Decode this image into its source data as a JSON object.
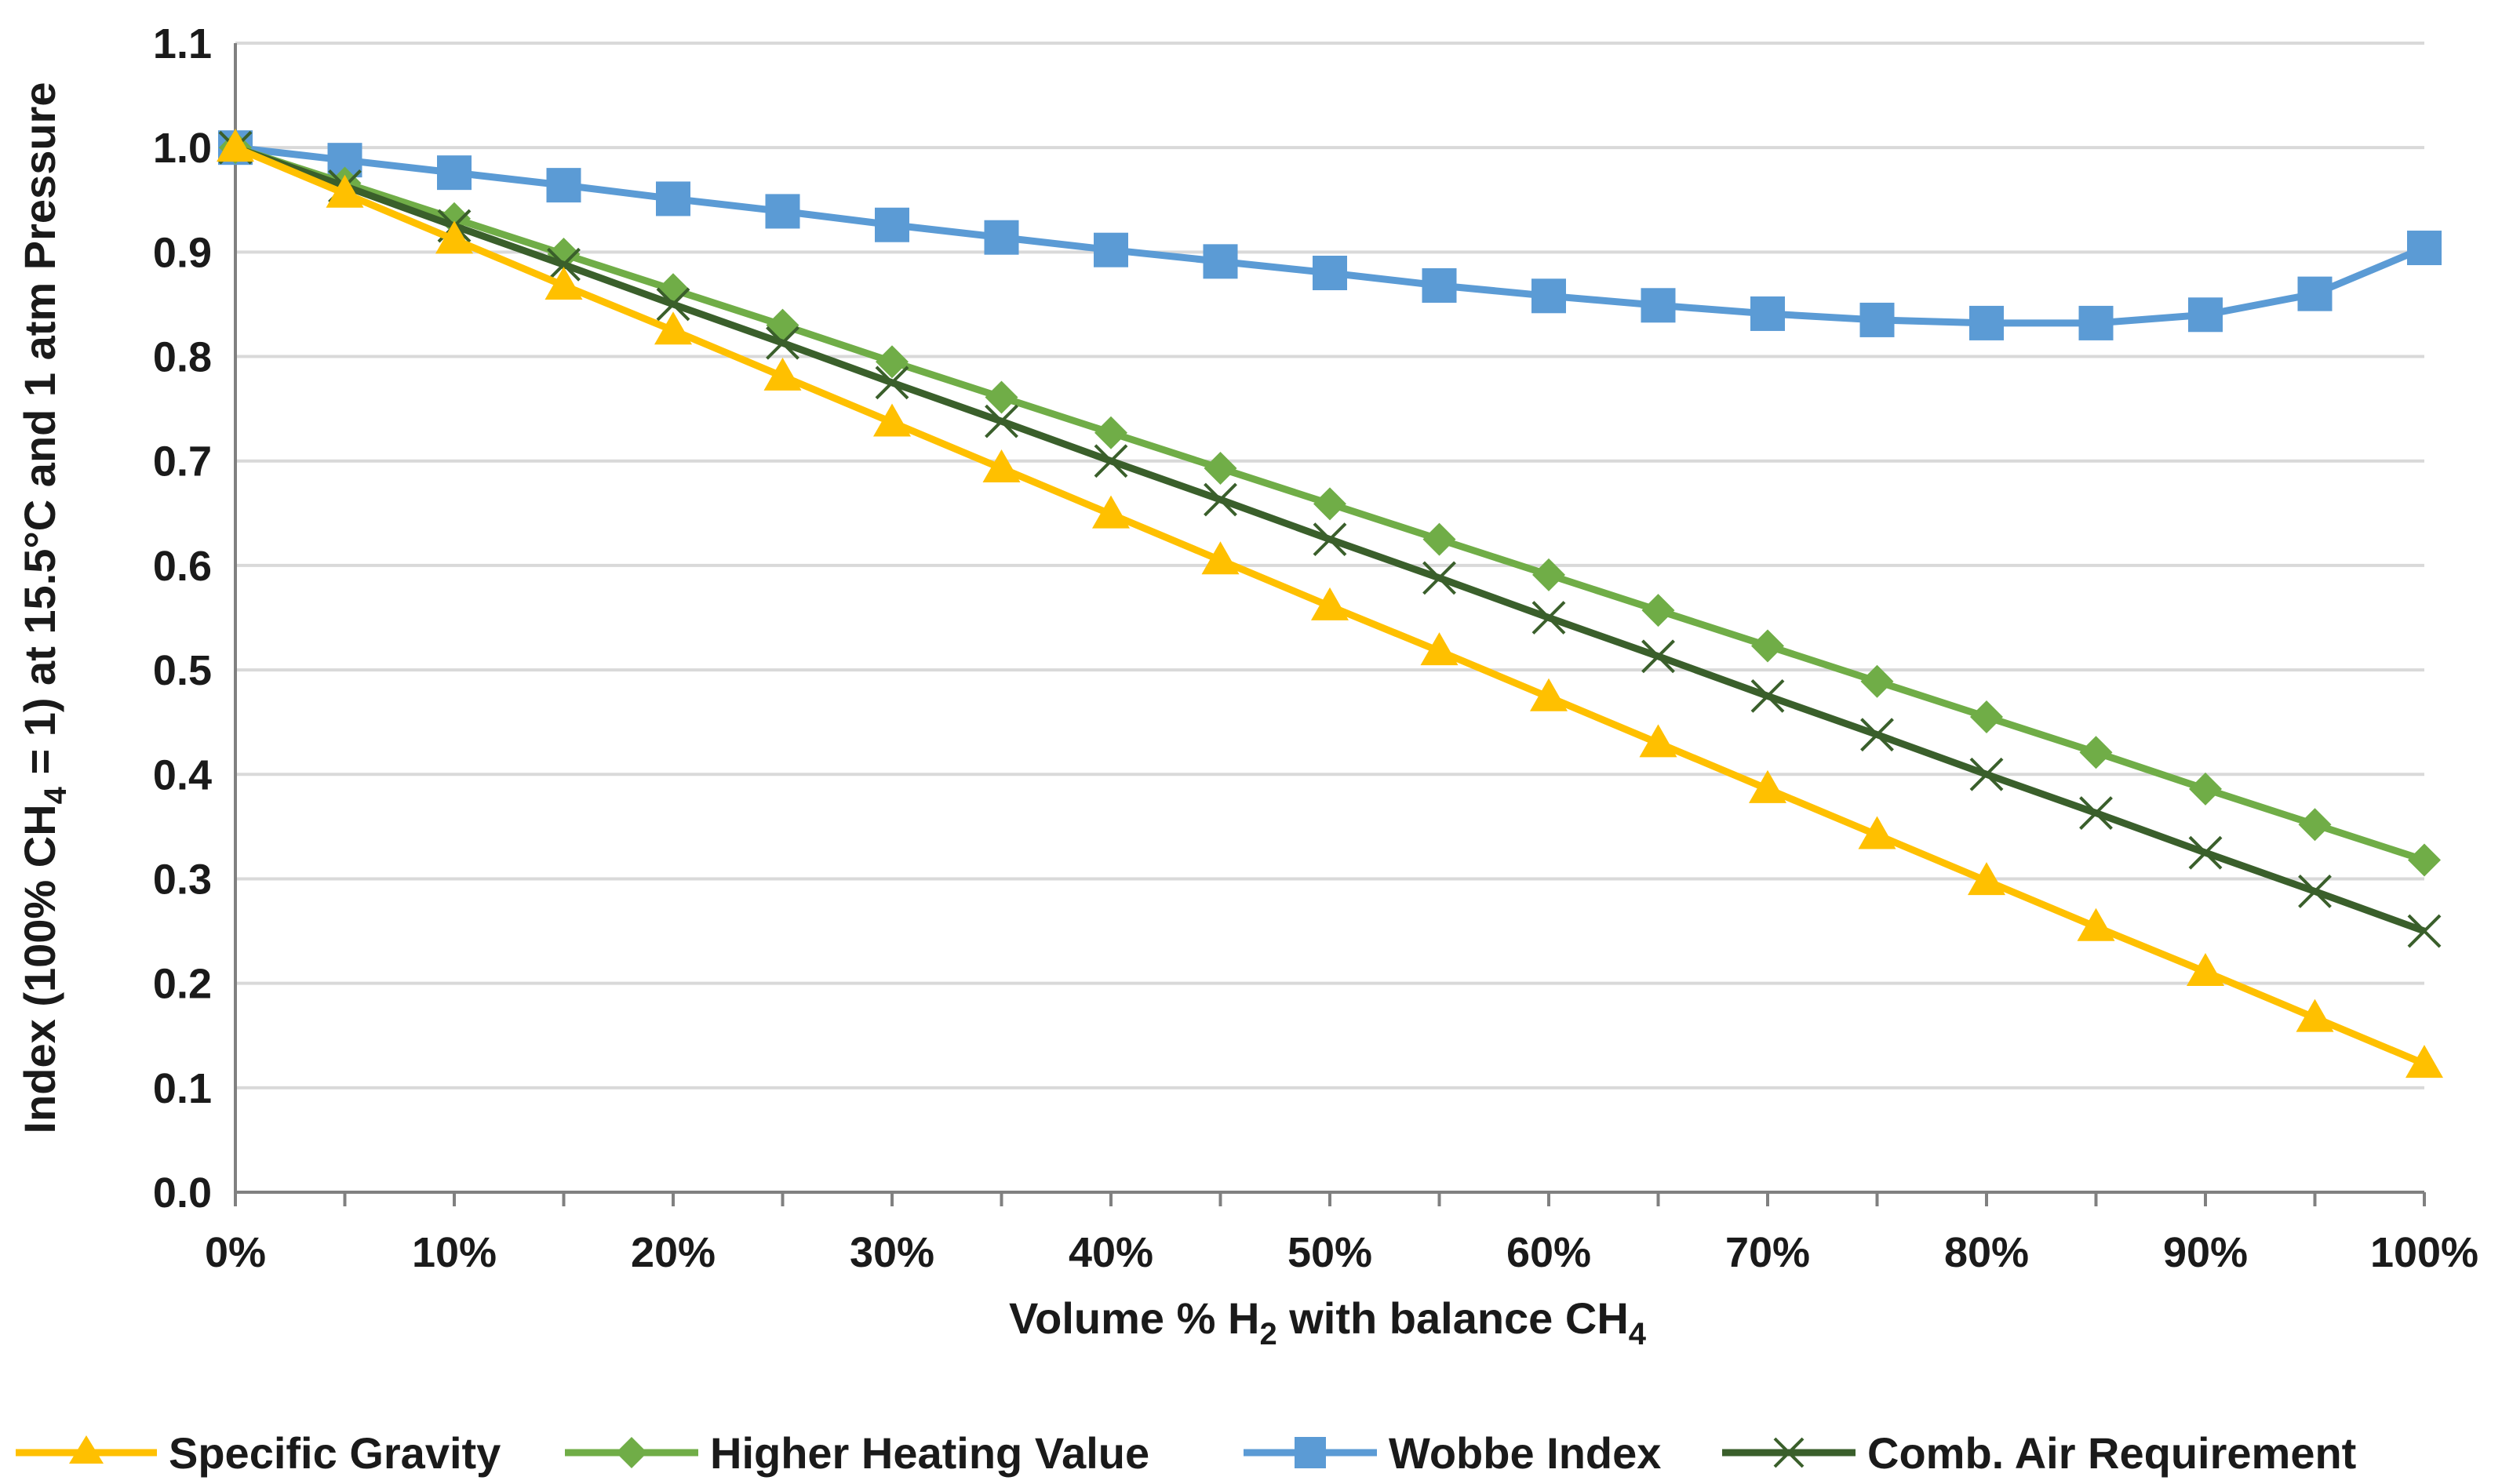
{
  "chart_data": {
    "type": "line",
    "title": "",
    "xlabel": {
      "prefix": "Volume % H",
      "sub1": "2",
      "mid": " with balance CH",
      "sub2": "4"
    },
    "ylabel": {
      "prefix": "Index (100% CH",
      "sub": "4",
      "suffix": " = 1) at 15.5°C and 1 atm Pressure"
    },
    "x": [
      0,
      5,
      10,
      15,
      20,
      25,
      30,
      35,
      40,
      45,
      50,
      55,
      60,
      65,
      70,
      75,
      80,
      85,
      90,
      95,
      100
    ],
    "xlim": [
      0,
      100
    ],
    "ylim": [
      0,
      1.1
    ],
    "grid": true,
    "legend_position": "bottom",
    "x_tick_labels": [
      "0%",
      "10%",
      "20%",
      "30%",
      "40%",
      "50%",
      "60%",
      "70%",
      "80%",
      "90%",
      "100%"
    ],
    "x_tick_values": [
      0,
      10,
      20,
      30,
      40,
      50,
      60,
      70,
      80,
      90,
      100
    ],
    "y_tick_labels": [
      "0.0",
      "0.1",
      "0.2",
      "0.3",
      "0.4",
      "0.5",
      "0.6",
      "0.7",
      "0.8",
      "0.9",
      "1.0",
      "1.1"
    ],
    "y_tick_values": [
      0,
      0.1,
      0.2,
      0.3,
      0.4,
      0.5,
      0.6,
      0.7,
      0.8,
      0.9,
      1.0,
      1.1
    ],
    "series": [
      {
        "name": "Specific Gravity",
        "color": "#FFC000",
        "marker": "triangle",
        "values": [
          1.0,
          0.956,
          0.912,
          0.868,
          0.825,
          0.781,
          0.737,
          0.693,
          0.649,
          0.605,
          0.561,
          0.518,
          0.474,
          0.43,
          0.386,
          0.342,
          0.298,
          0.254,
          0.211,
          0.167,
          0.123
        ]
      },
      {
        "name": "Higher Heating Value",
        "color": "#70AD47",
        "marker": "diamond",
        "values": [
          1.0,
          0.966,
          0.932,
          0.898,
          0.864,
          0.83,
          0.795,
          0.761,
          0.727,
          0.693,
          0.659,
          0.625,
          0.591,
          0.557,
          0.523,
          0.489,
          0.455,
          0.421,
          0.386,
          0.352,
          0.318
        ]
      },
      {
        "name": "Wobbe Index",
        "color": "#5B9BD5",
        "marker": "square",
        "values": [
          1.0,
          0.988,
          0.976,
          0.964,
          0.951,
          0.939,
          0.926,
          0.914,
          0.902,
          0.891,
          0.88,
          0.868,
          0.858,
          0.849,
          0.841,
          0.835,
          0.832,
          0.832,
          0.84,
          0.86,
          0.904
        ]
      },
      {
        "name": "Comb. Air Requirement",
        "color": "#3A5F2B",
        "marker": "x",
        "values": [
          1.0,
          0.963,
          0.925,
          0.888,
          0.85,
          0.813,
          0.775,
          0.738,
          0.7,
          0.663,
          0.625,
          0.588,
          0.55,
          0.513,
          0.475,
          0.438,
          0.4,
          0.363,
          0.325,
          0.288,
          0.25
        ]
      }
    ]
  },
  "colors": {
    "grid": "#D9D9D9",
    "axis": "#808080",
    "text": "#1a1a1a"
  }
}
